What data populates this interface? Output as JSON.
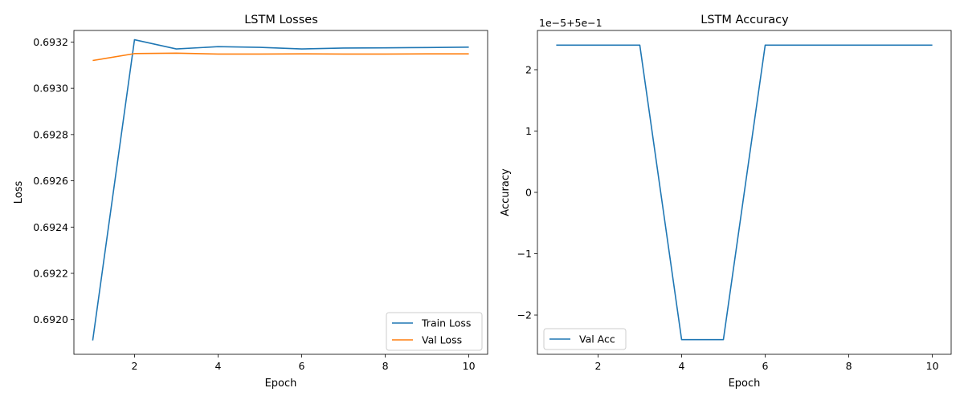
{
  "chart_data": [
    {
      "type": "line",
      "title": "LSTM Losses",
      "xlabel": "Epoch",
      "ylabel": "Loss",
      "xlim": [
        0.55,
        10.45
      ],
      "ylim": [
        0.69185,
        0.69325
      ],
      "xticks": [
        2,
        4,
        6,
        8,
        10
      ],
      "yticks": [
        0.692,
        0.6922,
        0.6924,
        0.6926,
        0.6928,
        0.693,
        0.6932
      ],
      "ytick_labels": [
        "0.6920",
        "0.6922",
        "0.6924",
        "0.6926",
        "0.6928",
        "0.6930",
        "0.6932"
      ],
      "legend_position": "lower-right",
      "x": [
        1,
        2,
        3,
        4,
        5,
        6,
        7,
        8,
        9,
        10
      ],
      "series": [
        {
          "name": "Train Loss",
          "color": "#1f77b4",
          "values": [
            0.69191,
            0.69321,
            0.69317,
            0.69318,
            0.693177,
            0.69317,
            0.693174,
            0.693175,
            0.693176,
            0.693178
          ]
        },
        {
          "name": "Val Loss",
          "color": "#ff7f0e",
          "values": [
            0.69312,
            0.69315,
            0.693152,
            0.693148,
            0.693148,
            0.693149,
            0.693148,
            0.693148,
            0.693149,
            0.693149
          ]
        }
      ]
    },
    {
      "type": "line",
      "title": "LSTM Accuracy",
      "xlabel": "Epoch",
      "ylabel": "Accuracy",
      "offset_label": "1e−5+5e−1",
      "xlim": [
        0.55,
        10.45
      ],
      "ylim": [
        -2.64,
        2.64
      ],
      "xticks": [
        2,
        4,
        6,
        8,
        10
      ],
      "yticks": [
        -2,
        -1,
        0,
        1,
        2
      ],
      "ytick_labels": [
        "−2",
        "−1",
        "0",
        "1",
        "2"
      ],
      "legend_position": "lower-left",
      "x": [
        1,
        2,
        3,
        4,
        5,
        6,
        7,
        8,
        9,
        10
      ],
      "series": [
        {
          "name": "Val Acc",
          "color": "#1f77b4",
          "values": [
            2.4,
            2.4,
            2.4,
            -2.4,
            -2.4,
            2.4,
            2.4,
            2.4,
            2.4,
            2.4
          ]
        }
      ]
    }
  ]
}
